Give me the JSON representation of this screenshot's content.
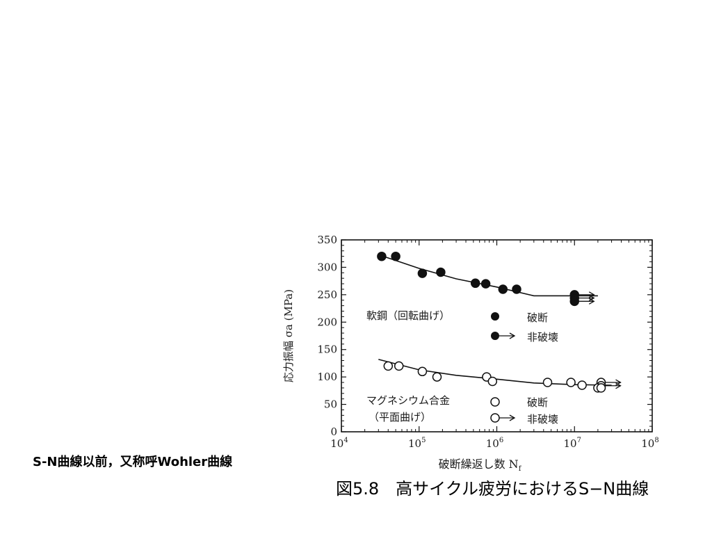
{
  "slide": {
    "side_note": "S-N曲線以前，又称呼Wohler曲線",
    "caption": "図5.8　高サイクル疲労におけるS−N曲線"
  },
  "chart_data": {
    "type": "scatter",
    "xscale": "log",
    "xlim": [
      10000,
      100000000
    ],
    "ylim": [
      0,
      350
    ],
    "grid": false,
    "xlabel": "破断繰返し数 N",
    "xlabel_sub": "f",
    "ylabel": "応力振幅 σa (MPa)",
    "x_ticks": [
      {
        "base": "10",
        "exp": "4"
      },
      {
        "base": "10",
        "exp": "5"
      },
      {
        "base": "10",
        "exp": "6"
      },
      {
        "base": "10",
        "exp": "7"
      },
      {
        "base": "10",
        "exp": "8"
      }
    ],
    "y_ticks": [
      "0",
      "50",
      "100",
      "150",
      "200",
      "250",
      "300",
      "350"
    ],
    "series": [
      {
        "name": "軟鋼（回転曲げ）",
        "marker": "filled-circle",
        "fracture_label": "破断",
        "runout_label": "非破壊",
        "points": [
          [
            33000,
            320
          ],
          [
            50000,
            320
          ],
          [
            110000,
            289
          ],
          [
            190000,
            291
          ],
          [
            530000,
            271
          ],
          [
            720000,
            270
          ],
          [
            1200000,
            260
          ],
          [
            1800000,
            260
          ]
        ],
        "runouts": [
          [
            10000000,
            250
          ],
          [
            10000000,
            244
          ],
          [
            10000000,
            238
          ]
        ],
        "fit": [
          [
            30000,
            323
          ],
          [
            100000,
            298
          ],
          [
            300000,
            279
          ],
          [
            1000000,
            264
          ],
          [
            3000000,
            248
          ],
          [
            20000000,
            248
          ]
        ]
      },
      {
        "name": "マグネシウム合金",
        "name_line2": "（平面曲げ）",
        "marker": "open-circle",
        "fracture_label": "破断",
        "runout_label": "非破壊",
        "points": [
          [
            40000,
            120
          ],
          [
            55000,
            120
          ],
          [
            110000,
            110
          ],
          [
            170000,
            100
          ],
          [
            740000,
            100
          ],
          [
            880000,
            92
          ],
          [
            4500000,
            90
          ],
          [
            9000000,
            90
          ],
          [
            12500000,
            85
          ],
          [
            20000000,
            80
          ],
          [
            22000000,
            80
          ]
        ],
        "runouts": [
          [
            22000000,
            90
          ],
          [
            22000000,
            84
          ]
        ],
        "fit": [
          [
            30000,
            132
          ],
          [
            100000,
            113
          ],
          [
            300000,
            103
          ],
          [
            1000000,
            96
          ],
          [
            3000000,
            89
          ],
          [
            10000000,
            86
          ],
          [
            30000000,
            85
          ]
        ]
      }
    ]
  }
}
